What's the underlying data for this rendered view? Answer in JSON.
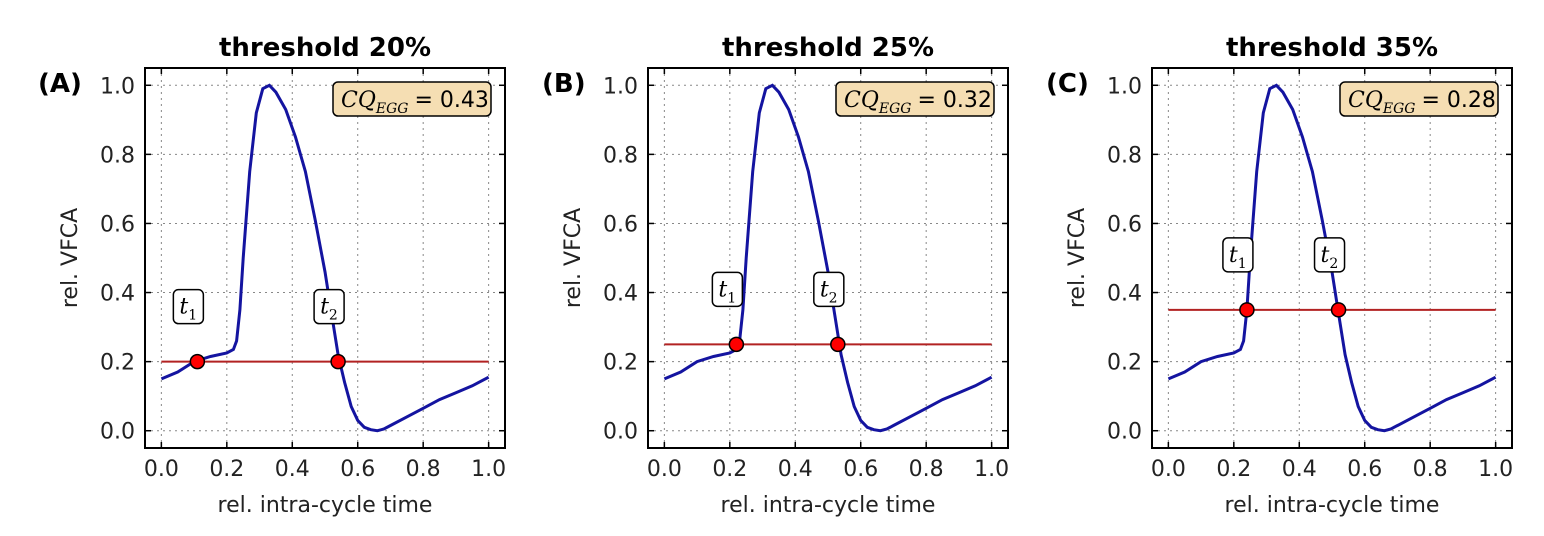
{
  "chart_data": [
    {
      "type": "line",
      "panel_label": "(A)",
      "title": "threshold 20%",
      "xlabel": "rel. intra-cycle time",
      "ylabel": "rel. VFCA",
      "xlim": [
        -0.05,
        1.05
      ],
      "ylim": [
        -0.05,
        1.05
      ],
      "xticks": [
        "0.0",
        "0.2",
        "0.4",
        "0.6",
        "0.8",
        "1.0"
      ],
      "yticks": [
        "0.0",
        "0.2",
        "0.4",
        "0.6",
        "0.8",
        "1.0"
      ],
      "grid": true,
      "threshold": 0.2,
      "crossings": [
        {
          "label": "t1",
          "x": 0.11,
          "y": 0.2
        },
        {
          "label": "t2",
          "x": 0.54,
          "y": 0.2
        }
      ],
      "annotation": {
        "symbol": "CQ",
        "subscript": "EGG",
        "value": "= 0.43"
      },
      "series": [
        {
          "x": [
            0.0,
            0.05,
            0.1,
            0.15,
            0.2,
            0.22,
            0.23,
            0.24,
            0.25,
            0.27,
            0.29,
            0.31,
            0.33,
            0.35,
            0.38,
            0.41,
            0.44,
            0.47,
            0.5,
            0.52,
            0.54,
            0.56,
            0.58,
            0.6,
            0.62,
            0.64,
            0.66,
            0.68,
            0.7,
            0.75,
            0.8,
            0.85,
            0.9,
            0.95,
            1.0
          ],
          "y": [
            0.15,
            0.17,
            0.2,
            0.215,
            0.225,
            0.235,
            0.26,
            0.35,
            0.5,
            0.75,
            0.92,
            0.99,
            1.0,
            0.98,
            0.93,
            0.85,
            0.75,
            0.61,
            0.46,
            0.34,
            0.22,
            0.14,
            0.07,
            0.03,
            0.01,
            0.003,
            0.0,
            0.005,
            0.015,
            0.04,
            0.065,
            0.09,
            0.11,
            0.13,
            0.155
          ]
        }
      ]
    },
    {
      "type": "line",
      "panel_label": "(B)",
      "title": "threshold 25%",
      "xlabel": "rel. intra-cycle time",
      "ylabel": "rel. VFCA",
      "xlim": [
        -0.05,
        1.05
      ],
      "ylim": [
        -0.05,
        1.05
      ],
      "xticks": [
        "0.0",
        "0.2",
        "0.4",
        "0.6",
        "0.8",
        "1.0"
      ],
      "yticks": [
        "0.0",
        "0.2",
        "0.4",
        "0.6",
        "0.8",
        "1.0"
      ],
      "grid": true,
      "threshold": 0.25,
      "crossings": [
        {
          "label": "t1",
          "x": 0.22,
          "y": 0.25
        },
        {
          "label": "t2",
          "x": 0.53,
          "y": 0.25
        }
      ],
      "annotation": {
        "symbol": "CQ",
        "subscript": "EGG",
        "value": "= 0.32"
      },
      "series": [
        {
          "x": [
            0.0,
            0.05,
            0.1,
            0.15,
            0.2,
            0.22,
            0.23,
            0.24,
            0.25,
            0.27,
            0.29,
            0.31,
            0.33,
            0.35,
            0.38,
            0.41,
            0.44,
            0.47,
            0.5,
            0.52,
            0.54,
            0.56,
            0.58,
            0.6,
            0.62,
            0.64,
            0.66,
            0.68,
            0.7,
            0.75,
            0.8,
            0.85,
            0.9,
            0.95,
            1.0
          ],
          "y": [
            0.15,
            0.17,
            0.2,
            0.215,
            0.225,
            0.235,
            0.26,
            0.35,
            0.5,
            0.75,
            0.92,
            0.99,
            1.0,
            0.98,
            0.93,
            0.85,
            0.75,
            0.61,
            0.46,
            0.34,
            0.22,
            0.14,
            0.07,
            0.03,
            0.01,
            0.003,
            0.0,
            0.005,
            0.015,
            0.04,
            0.065,
            0.09,
            0.11,
            0.13,
            0.155
          ]
        }
      ]
    },
    {
      "type": "line",
      "panel_label": "(C)",
      "title": "threshold 35%",
      "xlabel": "rel. intra-cycle time",
      "ylabel": "rel. VFCA",
      "xlim": [
        -0.05,
        1.05
      ],
      "ylim": [
        -0.05,
        1.05
      ],
      "xticks": [
        "0.0",
        "0.2",
        "0.4",
        "0.6",
        "0.8",
        "1.0"
      ],
      "yticks": [
        "0.0",
        "0.2",
        "0.4",
        "0.6",
        "0.8",
        "1.0"
      ],
      "grid": true,
      "threshold": 0.35,
      "crossings": [
        {
          "label": "t1",
          "x": 0.24,
          "y": 0.35
        },
        {
          "label": "t2",
          "x": 0.52,
          "y": 0.35
        }
      ],
      "annotation": {
        "symbol": "CQ",
        "subscript": "EGG",
        "value": "= 0.28"
      },
      "series": [
        {
          "x": [
            0.0,
            0.05,
            0.1,
            0.15,
            0.2,
            0.22,
            0.23,
            0.24,
            0.25,
            0.27,
            0.29,
            0.31,
            0.33,
            0.35,
            0.38,
            0.41,
            0.44,
            0.47,
            0.5,
            0.52,
            0.54,
            0.56,
            0.58,
            0.6,
            0.62,
            0.64,
            0.66,
            0.68,
            0.7,
            0.75,
            0.8,
            0.85,
            0.9,
            0.95,
            1.0
          ],
          "y": [
            0.15,
            0.17,
            0.2,
            0.215,
            0.225,
            0.235,
            0.26,
            0.35,
            0.5,
            0.75,
            0.92,
            0.99,
            1.0,
            0.98,
            0.93,
            0.85,
            0.75,
            0.61,
            0.46,
            0.34,
            0.22,
            0.14,
            0.07,
            0.03,
            0.01,
            0.003,
            0.0,
            0.005,
            0.015,
            0.04,
            0.065,
            0.09,
            0.11,
            0.13,
            0.155
          ]
        }
      ]
    }
  ]
}
